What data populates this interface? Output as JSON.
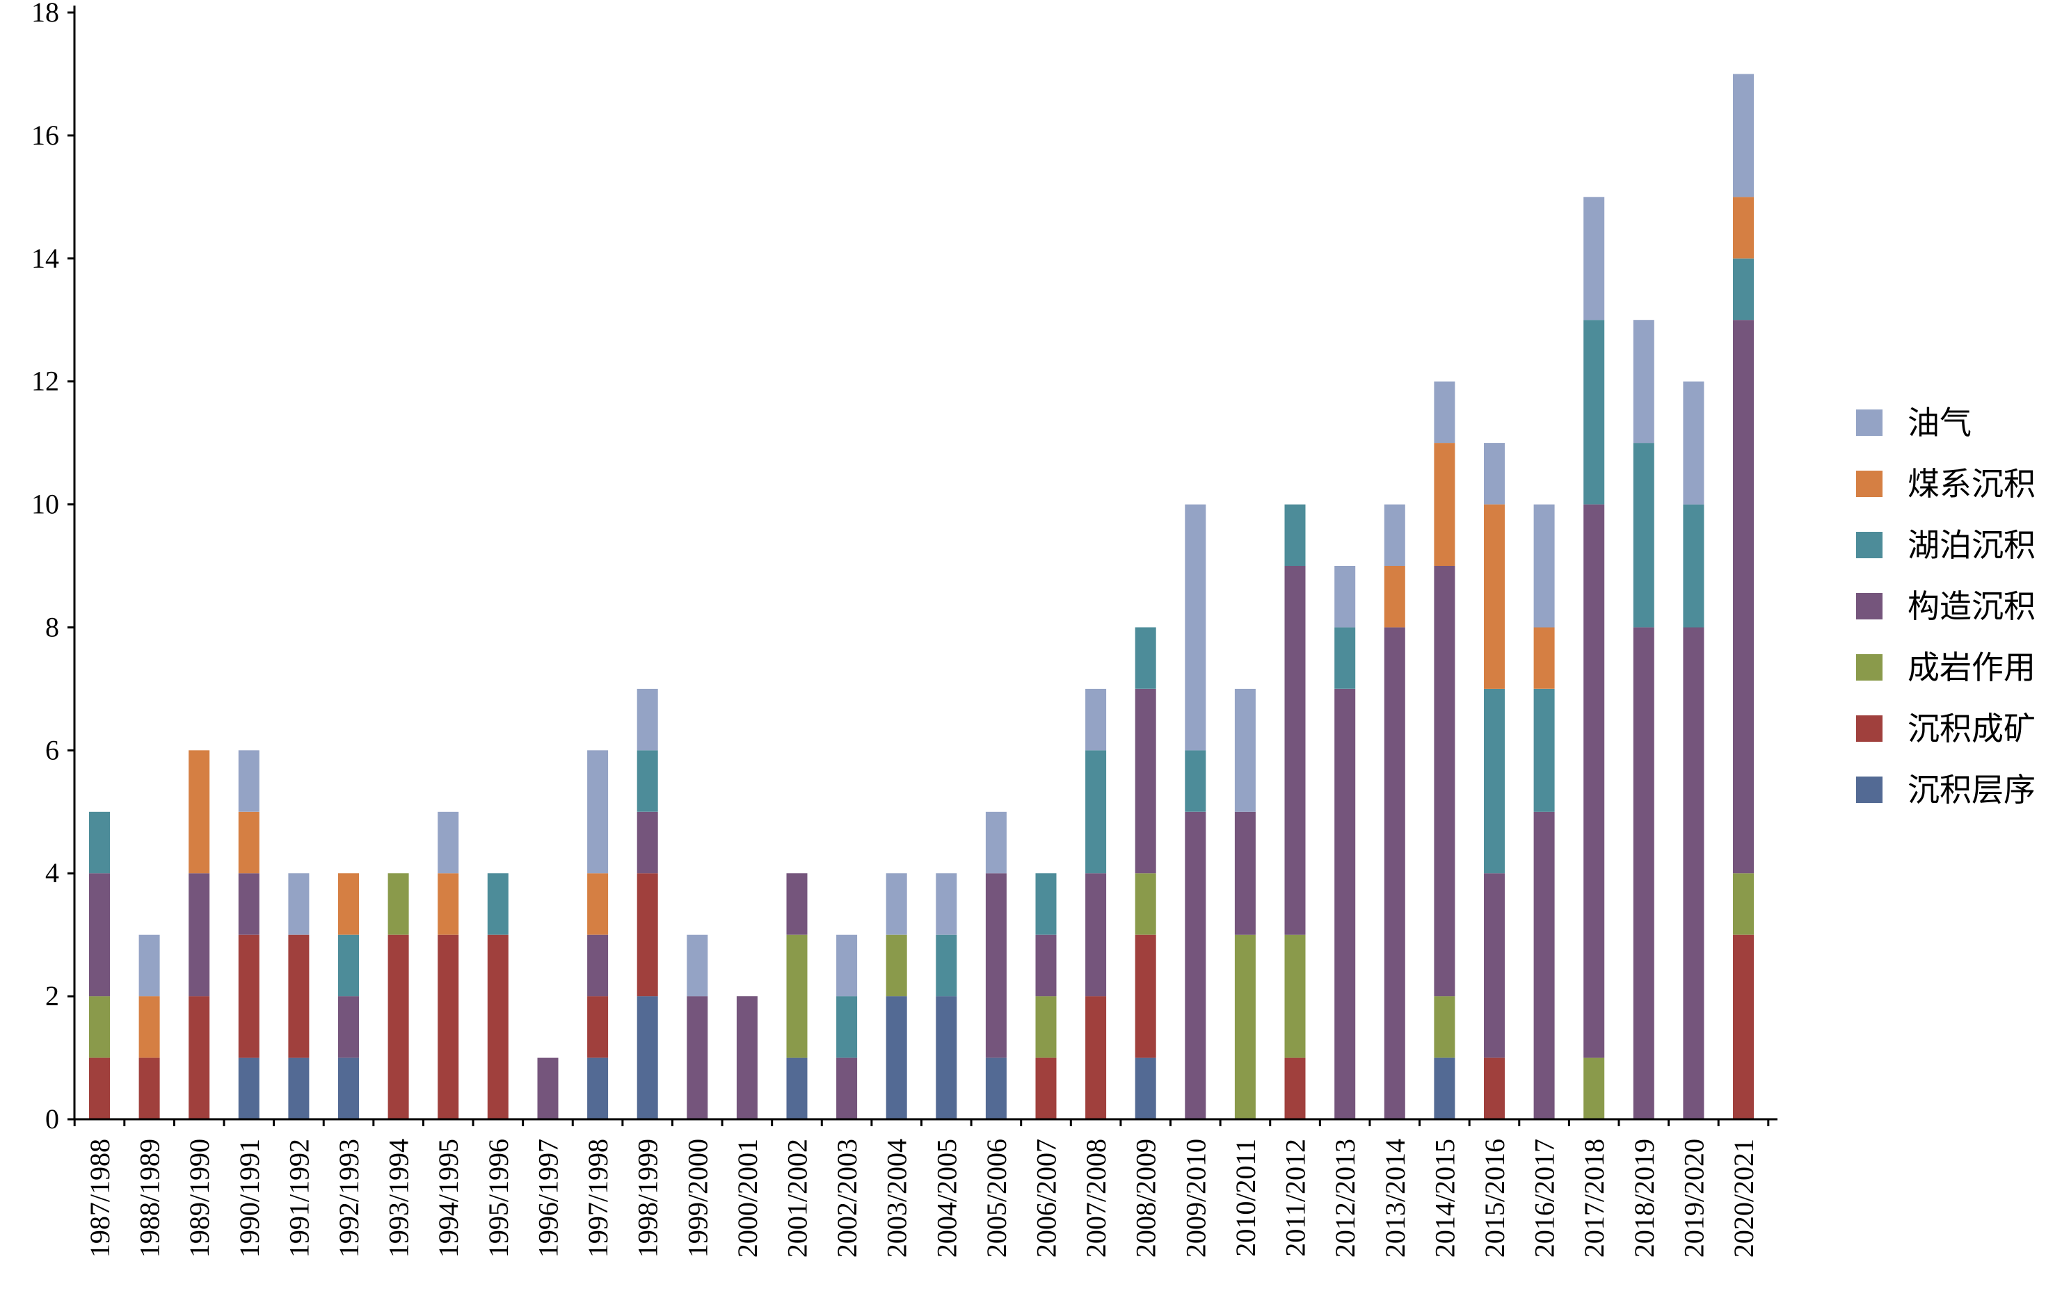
{
  "chart_data": {
    "type": "bar",
    "stacked": true,
    "title": "",
    "xlabel": "",
    "ylabel": "",
    "ylim": [
      0,
      18
    ],
    "yticks": [
      "0",
      "2",
      "4",
      "6",
      "8",
      "10",
      "12",
      "14",
      "16",
      "18"
    ],
    "grid": false,
    "legend_position": "right",
    "categories": [
      "1987/1988",
      "1988/1989",
      "1989/1990",
      "1990/1991",
      "1991/1992",
      "1992/1993",
      "1993/1994",
      "1994/1995",
      "1995/1996",
      "1996/1997",
      "1997/1998",
      "1998/1999",
      "1999/2000",
      "2000/2001",
      "2001/2002",
      "2002/2003",
      "2003/2004",
      "2004/2005",
      "2005/2006",
      "2006/2007",
      "2007/2008",
      "2008/2009",
      "2009/2010",
      "2010/2011",
      "2011/2012",
      "2012/2013",
      "2013/2014",
      "2014/2015",
      "2015/2016",
      "2016/2017",
      "2017/2018",
      "2018/2019",
      "2019/2020",
      "2020/2021"
    ],
    "series": [
      {
        "name": "沉积层序",
        "color": "#536a94",
        "values": [
          0,
          0,
          0,
          1,
          1,
          1,
          0,
          0,
          0,
          0,
          1,
          2,
          0,
          0,
          1,
          0,
          2,
          2,
          1,
          0,
          0,
          1,
          0,
          0,
          0,
          0,
          0,
          1,
          0,
          0,
          0,
          0,
          0,
          0
        ]
      },
      {
        "name": "沉积成矿",
        "color": "#a0403d",
        "values": [
          1,
          1,
          2,
          2,
          2,
          0,
          3,
          3,
          3,
          0,
          1,
          2,
          0,
          0,
          0,
          0,
          0,
          0,
          0,
          1,
          2,
          2,
          0,
          0,
          1,
          0,
          0,
          0,
          1,
          0,
          0,
          0,
          0,
          3
        ]
      },
      {
        "name": "成岩作用",
        "color": "#8a9a4b",
        "values": [
          1,
          0,
          0,
          0,
          0,
          0,
          1,
          0,
          0,
          0,
          0,
          0,
          0,
          0,
          2,
          0,
          1,
          0,
          0,
          1,
          0,
          1,
          0,
          3,
          2,
          0,
          0,
          1,
          0,
          0,
          1,
          0,
          0,
          1
        ]
      },
      {
        "name": "构造沉积",
        "color": "#75557c",
        "values": [
          2,
          0,
          2,
          1,
          0,
          1,
          0,
          0,
          0,
          1,
          1,
          1,
          2,
          2,
          1,
          1,
          0,
          0,
          3,
          1,
          2,
          3,
          5,
          2,
          6,
          7,
          8,
          7,
          3,
          5,
          9,
          8,
          8,
          9
        ]
      },
      {
        "name": "湖泊沉积",
        "color": "#4d8c99",
        "values": [
          1,
          0,
          0,
          0,
          0,
          1,
          0,
          0,
          1,
          0,
          0,
          1,
          0,
          0,
          0,
          1,
          0,
          1,
          0,
          1,
          2,
          1,
          1,
          0,
          1,
          1,
          0,
          0,
          3,
          2,
          3,
          3,
          2,
          1
        ]
      },
      {
        "name": "煤系沉积",
        "color": "#d57f43",
        "values": [
          0,
          1,
          2,
          1,
          0,
          1,
          0,
          1,
          0,
          0,
          1,
          0,
          0,
          0,
          0,
          0,
          0,
          0,
          0,
          0,
          0,
          0,
          0,
          0,
          0,
          0,
          1,
          2,
          3,
          1,
          0,
          0,
          0,
          1
        ]
      },
      {
        "name": "油气",
        "color": "#94a3c5",
        "values": [
          0,
          1,
          0,
          1,
          1,
          0,
          0,
          1,
          0,
          0,
          2,
          1,
          1,
          0,
          0,
          1,
          1,
          1,
          1,
          0,
          1,
          0,
          4,
          2,
          0,
          1,
          1,
          1,
          1,
          2,
          2,
          2,
          2,
          2
        ]
      }
    ]
  }
}
